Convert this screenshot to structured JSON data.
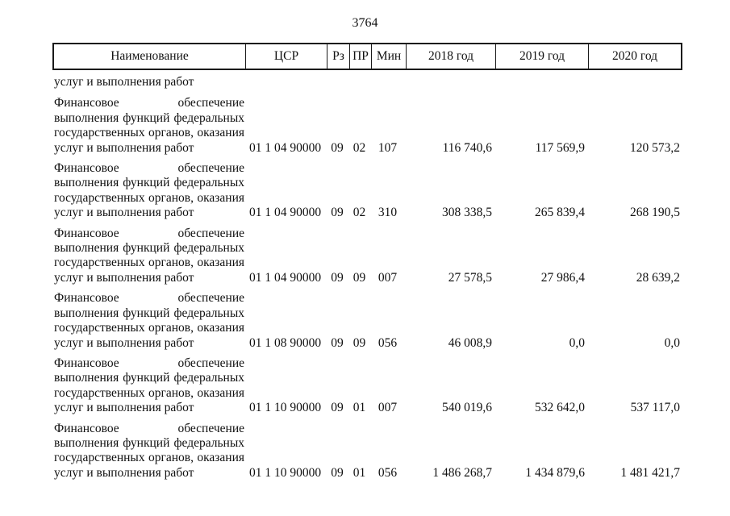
{
  "page": {
    "number": "3764"
  },
  "colors": {
    "text": "#111111",
    "border": "#1a1a1a",
    "background": "#ffffff"
  },
  "table": {
    "columns": [
      "Наименование",
      "ЦСР",
      "Рз",
      "ПР",
      "Мин",
      "2018 год",
      "2019 год",
      "2020 год"
    ],
    "carryover_text": "услуг и выполнения работ",
    "rows": [
      {
        "name_lines": [
          "Финансовое обеспечение",
          "выполнения функций федеральных",
          "государственных органов, оказания",
          "услуг и выполнения работ"
        ],
        "csr": "01 1 04 90000",
        "rz": "09",
        "pr": "02",
        "min": "107",
        "y2018": "116 740,6",
        "y2019": "117 569,9",
        "y2020": "120 573,2"
      },
      {
        "name_lines": [
          "Финансовое обеспечение",
          "выполнения функций федеральных",
          "государственных органов, оказания",
          "услуг и выполнения работ"
        ],
        "csr": "01 1 04 90000",
        "rz": "09",
        "pr": "02",
        "min": "310",
        "y2018": "308 338,5",
        "y2019": "265 839,4",
        "y2020": "268 190,5"
      },
      {
        "name_lines": [
          "Финансовое обеспечение",
          "выполнения функций федеральных",
          "государственных органов, оказания",
          "услуг и выполнения работ"
        ],
        "csr": "01 1 04 90000",
        "rz": "09",
        "pr": "09",
        "min": "007",
        "y2018": "27 578,5",
        "y2019": "27 986,4",
        "y2020": "28 639,2"
      },
      {
        "name_lines": [
          "Финансовое обеспечение",
          "выполнения функций федеральных",
          "государственных органов, оказания",
          "услуг и выполнения работ"
        ],
        "csr": "01 1 08 90000",
        "rz": "09",
        "pr": "09",
        "min": "056",
        "y2018": "46 008,9",
        "y2019": "0,0",
        "y2020": "0,0"
      },
      {
        "name_lines": [
          "Финансовое обеспечение",
          "выполнения функций федеральных",
          "государственных органов, оказания",
          "услуг и выполнения работ"
        ],
        "csr": "01 1 10 90000",
        "rz": "09",
        "pr": "01",
        "min": "007",
        "y2018": "540 019,6",
        "y2019": "532 642,0",
        "y2020": "537 117,0"
      },
      {
        "name_lines": [
          "Финансовое обеспечение",
          "выполнения функций федеральных",
          "государственных органов, оказания",
          "услуг и выполнения работ"
        ],
        "csr": "01 1 10 90000",
        "rz": "09",
        "pr": "01",
        "min": "056",
        "y2018": "1 486 268,7",
        "y2019": "1 434 879,6",
        "y2020": "1 481 421,7"
      }
    ]
  }
}
